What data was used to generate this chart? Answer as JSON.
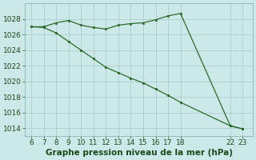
{
  "x_upper": [
    6,
    7,
    8,
    9,
    10,
    11,
    12,
    13,
    14,
    15,
    16,
    17,
    18,
    22,
    23
  ],
  "y_upper": [
    1027.0,
    1027.0,
    1027.5,
    1027.8,
    1027.2,
    1026.9,
    1026.7,
    1027.2,
    1027.4,
    1027.5,
    1027.9,
    1028.4,
    1028.7,
    1014.3,
    1013.9
  ],
  "x_lower": [
    6,
    7,
    8,
    9,
    10,
    11,
    12,
    13,
    14,
    15,
    16,
    17,
    18,
    22,
    23
  ],
  "y_lower": [
    1027.0,
    1026.9,
    1026.2,
    1025.1,
    1024.0,
    1022.9,
    1021.8,
    1021.1,
    1020.4,
    1019.8,
    1019.0,
    1018.2,
    1017.3,
    1014.3,
    1013.9
  ],
  "line_color": "#2a6b2a",
  "bg_color": "#cce8e8",
  "grid_color": "#aacece",
  "title": "Graphe pression niveau de la mer (hPa)",
  "xlabel_ticks": [
    6,
    7,
    8,
    9,
    10,
    11,
    12,
    13,
    14,
    15,
    16,
    17,
    18,
    22,
    23
  ],
  "ylim": [
    1013.0,
    1030.0
  ],
  "yticks": [
    1014,
    1016,
    1018,
    1020,
    1022,
    1024,
    1026,
    1028
  ],
  "title_fontsize": 7.5,
  "tick_fontsize": 6.5
}
